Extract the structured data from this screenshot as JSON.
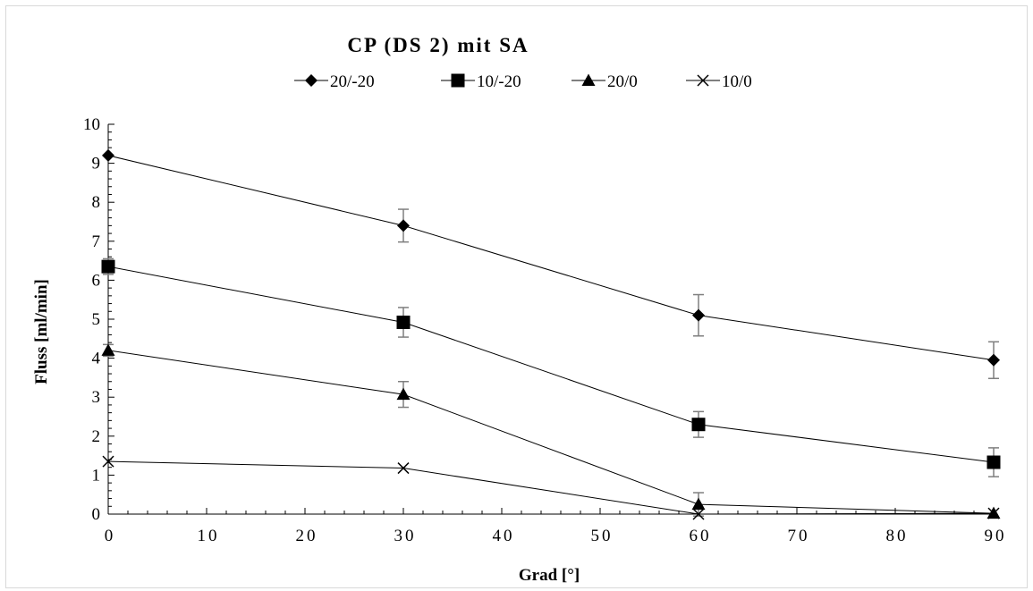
{
  "chart_data": {
    "type": "line",
    "title": "CP (DS 2) mit SA",
    "xlabel": "Grad [°]",
    "ylabel": "Fluss [ml/min]",
    "xlim": [
      0,
      90
    ],
    "ylim": [
      0,
      10
    ],
    "x_ticks": [
      "0",
      "10",
      "20",
      "30",
      "40",
      "50",
      "60",
      "70",
      "80",
      "90"
    ],
    "y_ticks": [
      "0",
      "1",
      "2",
      "3",
      "4",
      "5",
      "6",
      "7",
      "8",
      "9",
      "10"
    ],
    "grid": false,
    "legend_position": "top",
    "x": [
      0,
      30,
      60,
      90
    ],
    "series": [
      {
        "name": "20/-20",
        "marker": "diamond",
        "values": [
          9.2,
          7.4,
          5.1,
          3.95
        ],
        "errors": [
          0.0,
          0.42,
          0.53,
          0.47
        ]
      },
      {
        "name": "10/-20",
        "marker": "square",
        "values": [
          6.35,
          4.92,
          2.3,
          1.33
        ],
        "errors": [
          0.2,
          0.38,
          0.33,
          0.37
        ]
      },
      {
        "name": "20/0",
        "marker": "triangle",
        "values": [
          4.2,
          3.07,
          0.25,
          0.02
        ],
        "errors": [
          0.15,
          0.33,
          0.3,
          0.0
        ]
      },
      {
        "name": "10/0",
        "marker": "x",
        "values": [
          1.35,
          1.18,
          0.0,
          0.02
        ],
        "errors": [
          0.0,
          0.0,
          0.0,
          0.0
        ]
      }
    ],
    "line_color": "#000000",
    "error_bar_color": "#7f7f7f"
  }
}
